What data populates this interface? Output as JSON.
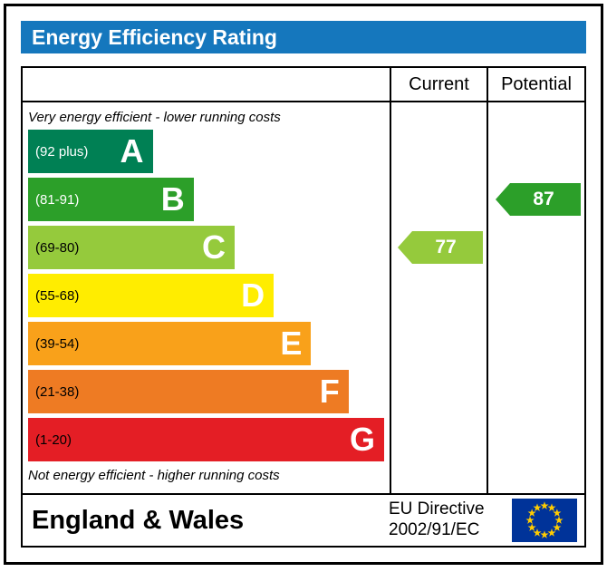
{
  "title": "Energy Efficiency Rating",
  "columns": {
    "current": "Current",
    "potential": "Potential"
  },
  "notes": {
    "top": "Very energy efficient - lower running costs",
    "bottom": "Not energy efficient - higher running costs"
  },
  "footer": {
    "region": "England & Wales",
    "directive_line1": "EU Directive",
    "directive_line2": "2002/91/EC"
  },
  "colors": {
    "header_blue": "#1577bd",
    "border": "#000000",
    "eu_flag_blue": "#003399",
    "eu_flag_star": "#ffcc00"
  },
  "chart_data": {
    "type": "bar",
    "title": "Energy Efficiency Rating",
    "categories": [
      "A",
      "B",
      "C",
      "D",
      "E",
      "F",
      "G"
    ],
    "bands": [
      {
        "letter": "A",
        "range": "(92 plus)",
        "min": 92,
        "max": 100,
        "color": "#008054",
        "label_color": "#ffffff",
        "width_pct": 35
      },
      {
        "letter": "B",
        "range": "(81-91)",
        "min": 81,
        "max": 91,
        "color": "#2c9f29",
        "label_color": "#ffffff",
        "width_pct": 46.5
      },
      {
        "letter": "C",
        "range": "(69-80)",
        "min": 69,
        "max": 80,
        "color": "#95ca3c",
        "label_color": "#000000",
        "width_pct": 58
      },
      {
        "letter": "D",
        "range": "(55-68)",
        "min": 55,
        "max": 68,
        "color": "#ffed00",
        "label_color": "#000000",
        "width_pct": 69
      },
      {
        "letter": "E",
        "range": "(39-54)",
        "min": 39,
        "max": 54,
        "color": "#f9a11a",
        "label_color": "#000000",
        "width_pct": 79.5
      },
      {
        "letter": "F",
        "range": "(21-38)",
        "min": 21,
        "max": 38,
        "color": "#ee7b23",
        "label_color": "#000000",
        "width_pct": 90
      },
      {
        "letter": "G",
        "range": "(1-20)",
        "min": 1,
        "max": 20,
        "color": "#e41e25",
        "label_color": "#000000",
        "width_pct": 100
      }
    ],
    "current": {
      "value": 77,
      "band": "C",
      "color": "#95ca3c"
    },
    "potential": {
      "value": 87,
      "band": "B",
      "color": "#2c9f29"
    }
  }
}
